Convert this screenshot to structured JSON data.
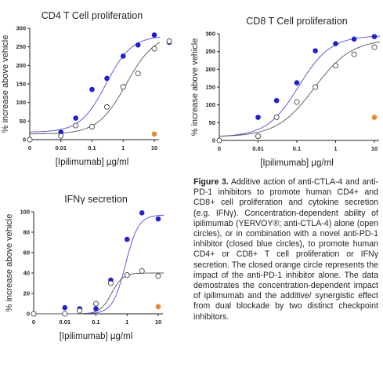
{
  "chart_data": [
    {
      "type": "scatter",
      "title": "CD4 T Cell proliferation",
      "xlabel": "[Ipilimumab] µg/ml",
      "ylabel": "% increase above vehicle",
      "xscale": "log",
      "x_ticks": [
        "0",
        "0.01",
        "0.1",
        "1",
        "10"
      ],
      "y_ticks": [
        "0",
        "50",
        "100",
        "150",
        "200",
        "250",
        "300"
      ],
      "ylim": [
        0,
        300
      ],
      "series": [
        {
          "marker": "filled-circle",
          "color": "#1f1fd6",
          "points": [
            [
              0,
              0
            ],
            [
              0.01,
              20
            ],
            [
              0.03,
              58
            ],
            [
              0.1,
              135
            ],
            [
              0.3,
              165
            ],
            [
              1,
              225
            ],
            [
              3,
              255
            ],
            [
              10,
              282
            ],
            [
              30,
              262
            ]
          ],
          "fit": [
            20,
            280,
            -0.55,
            1.05
          ]
        },
        {
          "marker": "open-circle",
          "color": "#444444",
          "points": [
            [
              0,
              0
            ],
            [
              0.01,
              10
            ],
            [
              0.03,
              38
            ],
            [
              0.1,
              35
            ],
            [
              0.3,
              88
            ],
            [
              1,
              142
            ],
            [
              3,
              178
            ],
            [
              10,
              245
            ],
            [
              30,
              265
            ]
          ],
          "fit": [
            15,
            285,
            0.1,
            0.95
          ]
        },
        {
          "marker": "filled-circle",
          "color": "#e8892b",
          "points": [
            [
              10,
              15
            ]
          ]
        }
      ]
    },
    {
      "type": "scatter",
      "title": "CD8 T Cell proliferation",
      "xlabel": "[Ipilimumab] µg/ml",
      "ylabel": "% increase above vehicle",
      "xscale": "log",
      "x_ticks": [
        "0",
        "0.01",
        "0.1",
        "1",
        "10"
      ],
      "y_ticks": [
        "0",
        "50",
        "100",
        "150",
        "200",
        "250",
        "300"
      ],
      "ylim": [
        0,
        300
      ],
      "series": [
        {
          "marker": "filled-circle",
          "color": "#1f1fd6",
          "points": [
            [
              0,
              0
            ],
            [
              0.01,
              65
            ],
            [
              0.03,
              112
            ],
            [
              0.1,
              162
            ],
            [
              0.3,
              252
            ],
            [
              1,
              272
            ],
            [
              3,
              285
            ],
            [
              10,
              292
            ],
            [
              30,
              285
            ]
          ],
          "fit": [
            10,
            295,
            -0.95,
            1.05
          ]
        },
        {
          "marker": "open-circle",
          "color": "#444444",
          "points": [
            [
              0,
              0
            ],
            [
              0.01,
              12
            ],
            [
              0.03,
              65
            ],
            [
              0.1,
              108
            ],
            [
              0.3,
              150
            ],
            [
              1,
              210
            ],
            [
              3,
              242
            ],
            [
              10,
              262
            ],
            [
              30,
              270
            ]
          ],
          "fit": [
            10,
            285,
            -0.55,
            0.9
          ]
        },
        {
          "marker": "filled-circle",
          "color": "#e8892b",
          "points": [
            [
              10,
              65
            ]
          ]
        }
      ]
    },
    {
      "type": "scatter",
      "title": "IFNγ secretion",
      "xlabel": "[Ipilimumab] µg/ml",
      "ylabel": "% increase above vehicle",
      "xscale": "log",
      "x_ticks": [
        "0",
        "0.01",
        "0.1",
        "1",
        "10"
      ],
      "y_ticks": [
        "0",
        "20",
        "40",
        "60",
        "80",
        "100"
      ],
      "ylim": [
        0,
        100
      ],
      "series": [
        {
          "marker": "filled-circle",
          "color": "#1f1fd6",
          "points": [
            [
              0,
              0
            ],
            [
              0.01,
              6
            ],
            [
              0.03,
              5
            ],
            [
              0.1,
              5
            ],
            [
              0.3,
              33
            ],
            [
              1,
              73
            ],
            [
              3,
              99
            ],
            [
              10,
              93
            ]
          ],
          "fit": [
            0,
            97,
            -0.05,
            2.1
          ]
        },
        {
          "marker": "open-circle",
          "color": "#444444",
          "points": [
            [
              0,
              0
            ],
            [
              0.01,
              0
            ],
            [
              0.03,
              3
            ],
            [
              0.1,
              10
            ],
            [
              0.3,
              30
            ],
            [
              1,
              38
            ],
            [
              3,
              42
            ],
            [
              10,
              37
            ]
          ],
          "fit": [
            0,
            40,
            -0.5,
            2.4
          ]
        },
        {
          "marker": "filled-circle",
          "color": "#e8892b",
          "points": [
            [
              10,
              7
            ]
          ]
        }
      ]
    }
  ],
  "caption": {
    "label": "Figure 3.",
    "text": " Additive action of anti-CTLA-4 and anti-PD-1 inhibitors to promote human CD4+ and CD8+ cell proliferation and cytokine secretion (e.g. IFNγ).  Concentration-dependent ability of ipilimumab (YERVOY®; anti-CTLA-4) alone (open circles), or in combination with a novel anti-PD-1 inhibitor (closed blue circles), to promote human CD4+ or CD8+ T cell proliferation or IFNγ secretion. The closed orange circle represents the impact of the anti-PD-1 inhibitor alone. The data demostrates the concentration-dependent impact of ipilimumab and the additive/ synergistic effect from dual blockade by two distinct checkpoint inhibitors."
  }
}
